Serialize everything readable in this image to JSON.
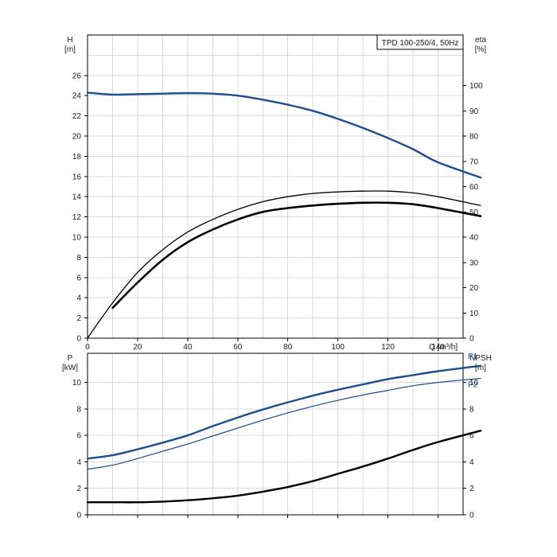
{
  "chart_data": [
    {
      "type": "line",
      "title": "TPD 100-250/4, 50Hz",
      "xlabel": "Q [m³/h]",
      "ylabel": [
        "H",
        "[m]"
      ],
      "ylabel_right": [
        "eta",
        "[%]"
      ],
      "xlim": [
        0,
        150
      ],
      "ylim": [
        0,
        30
      ],
      "ylim_right": [
        0,
        120
      ],
      "x_ticks": [
        0,
        20,
        40,
        60,
        80,
        100,
        120,
        140
      ],
      "y_ticks": [
        0,
        2,
        4,
        6,
        8,
        10,
        12,
        14,
        16,
        18,
        20,
        22,
        24,
        26
      ],
      "y_ticks_right": [
        0,
        10,
        20,
        30,
        40,
        50,
        60,
        70,
        80,
        90,
        100
      ],
      "grid": true,
      "series": [
        {
          "axis": "left",
          "color": "#1f4e8c",
          "x": [
            0,
            10,
            20,
            30,
            40,
            50,
            60,
            70,
            80,
            90,
            100,
            110,
            120,
            130,
            140,
            157
          ],
          "y": [
            24.3,
            24.1,
            24.15,
            24.2,
            24.25,
            24.2,
            24.0,
            23.6,
            23.1,
            22.5,
            21.7,
            20.8,
            19.8,
            18.7,
            17.4,
            15.9
          ]
        },
        {
          "axis": "right",
          "color": "#000000",
          "x": [
            0,
            10,
            20,
            30,
            40,
            50,
            60,
            70,
            80,
            90,
            100,
            110,
            120,
            130,
            140,
            157
          ],
          "y": [
            0,
            14,
            26,
            35,
            42,
            47,
            51,
            54,
            56,
            57.3,
            57.9,
            58.2,
            58.2,
            57.5,
            56.0,
            52.5
          ]
        },
        {
          "axis": "right",
          "color": "#000000",
          "x": [
            10,
            20,
            30,
            40,
            50,
            60,
            70,
            80,
            90,
            100,
            110,
            120,
            130,
            140,
            157
          ],
          "y": [
            12,
            22,
            31,
            38,
            43,
            47,
            50,
            51.5,
            52.5,
            53.2,
            53.6,
            53.6,
            53.0,
            51.5,
            48.3
          ]
        }
      ]
    },
    {
      "type": "line",
      "ylabel": [
        "P",
        "[kW]"
      ],
      "ylabel_right": [
        "NPSH",
        "[m]"
      ],
      "xlim": [
        0,
        150
      ],
      "ylim": [
        0,
        12.2
      ],
      "ylim_right": [
        0,
        12.2
      ],
      "y_ticks": [
        0,
        2,
        4,
        6,
        8,
        10
      ],
      "y_ticks_right": [
        0,
        2,
        4,
        6,
        8,
        10
      ],
      "grid": true,
      "series": [
        {
          "name": "P1",
          "axis": "left",
          "color": "#1f4e8c",
          "x": [
            0,
            10,
            20,
            30,
            40,
            50,
            60,
            70,
            80,
            90,
            100,
            110,
            120,
            130,
            140,
            157
          ],
          "y": [
            4.25,
            4.5,
            4.95,
            5.45,
            6.0,
            6.7,
            7.35,
            7.95,
            8.5,
            9.0,
            9.45,
            9.85,
            10.25,
            10.55,
            10.85,
            11.25
          ]
        },
        {
          "name": "P2",
          "axis": "left",
          "color": "#1f4e8c",
          "x": [
            0,
            10,
            20,
            30,
            40,
            50,
            60,
            70,
            80,
            90,
            100,
            110,
            120,
            130,
            140,
            157
          ],
          "y": [
            3.45,
            3.75,
            4.25,
            4.8,
            5.35,
            5.95,
            6.55,
            7.15,
            7.7,
            8.2,
            8.65,
            9.05,
            9.4,
            9.75,
            10.0,
            10.3
          ]
        },
        {
          "axis": "right",
          "color": "#000000",
          "x": [
            0,
            10,
            20,
            30,
            40,
            50,
            60,
            70,
            80,
            90,
            100,
            110,
            120,
            130,
            140,
            157
          ],
          "y": [
            0.95,
            0.95,
            0.95,
            1.0,
            1.1,
            1.25,
            1.45,
            1.75,
            2.1,
            2.55,
            3.1,
            3.65,
            4.25,
            4.9,
            5.5,
            6.35
          ]
        }
      ]
    }
  ]
}
